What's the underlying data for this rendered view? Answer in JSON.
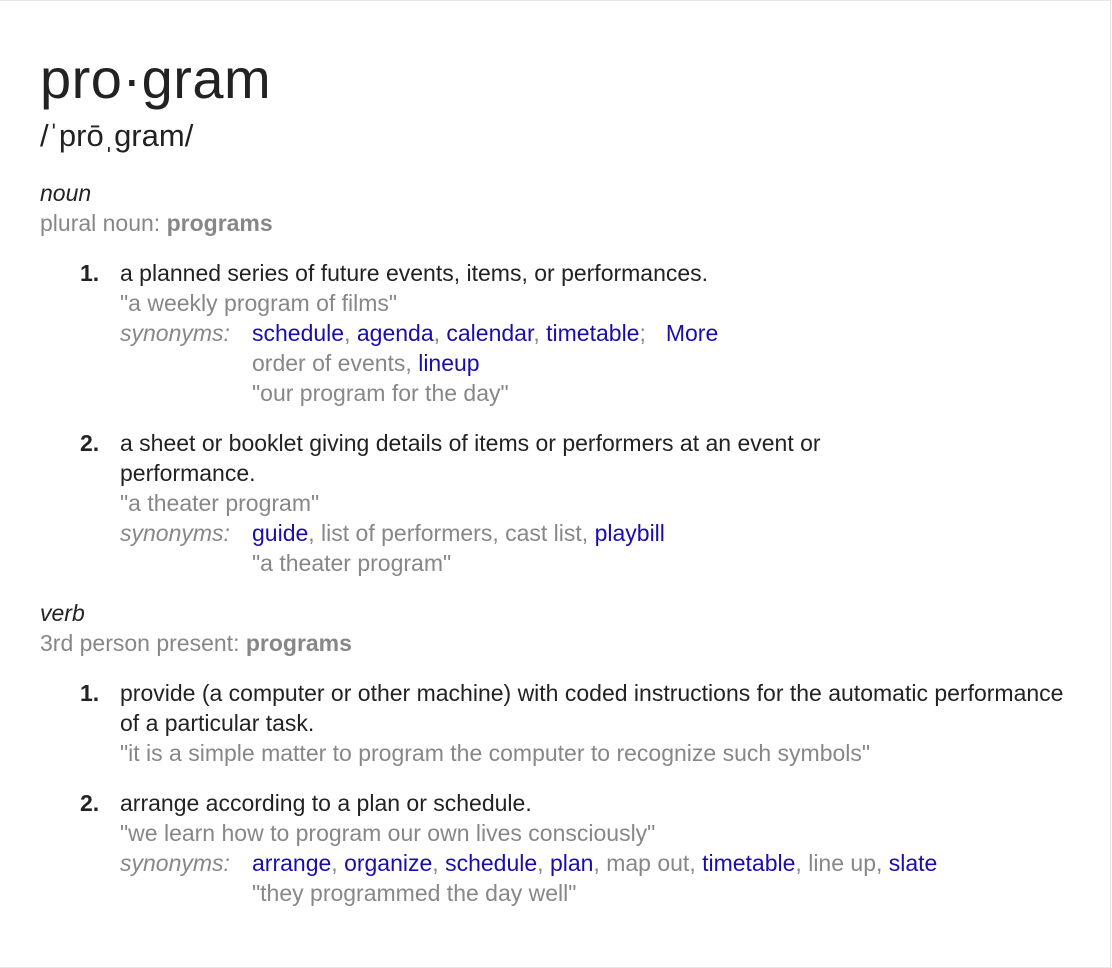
{
  "headword": "pro·gram",
  "phonetic": "/ˈprōˌgram/",
  "noun": {
    "pos": "noun",
    "inflection_label": "plural noun: ",
    "inflection_value": "programs",
    "senses": [
      {
        "num": "1.",
        "definition": "a planned series of future events, items, or performances.",
        "example": "\"a weekly program of films\"",
        "syn_label": "synonyms:",
        "syn_words": [
          "schedule",
          "agenda",
          "calendar",
          "timetable"
        ],
        "more_label": "More",
        "syn_line2_plain": "order of events, ",
        "syn_line2_link": "lineup",
        "syn_example": "\"our program for the day\""
      },
      {
        "num": "2.",
        "definition": "a sheet or booklet giving details of items or performers at an event or performance.",
        "example": "\"a theater program\"",
        "syn_label": "synonyms:",
        "syn_link1": "guide",
        "syn_plain": ", list of performers, cast list, ",
        "syn_link2": "playbill",
        "syn_example": "\"a theater program\""
      }
    ]
  },
  "verb": {
    "pos": "verb",
    "inflection_label": "3rd person present: ",
    "inflection_value": "programs",
    "senses": [
      {
        "num": "1.",
        "definition": "provide (a computer or other machine) with coded instructions for the automatic performance of a particular task.",
        "example": "\"it is a simple matter to program the computer to recognize such symbols\""
      },
      {
        "num": "2.",
        "definition": "arrange according to a plan or schedule.",
        "example": "\"we learn how to program our own lives consciously\"",
        "syn_label": "synonyms:",
        "syn_words": [
          "arrange",
          "organize",
          "schedule",
          "plan"
        ],
        "syn_plain": "map out",
        "syn_link": "timetable",
        "syn_plain2": "line up",
        "syn_link_last": "slate",
        "syn_example": "\"they programmed the day well\""
      }
    ]
  },
  "colors": {
    "link": "#1a0dab",
    "muted": "#878787",
    "text": "#222222"
  }
}
